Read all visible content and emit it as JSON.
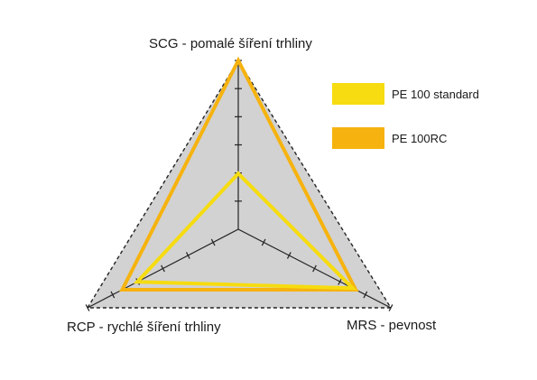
{
  "chart_data": {
    "type": "radar",
    "axes": [
      "SCG - pomalé šíření trhliny",
      "MRS - pevnost",
      "RCP - rychlé šíření trhliny"
    ],
    "series": [
      {
        "name": "PE 100 standard",
        "color": "#f6dc10",
        "values": [
          0.33,
          0.75,
          0.67
        ]
      },
      {
        "name": "PE 100RC",
        "color": "#f6b30f",
        "values": [
          1.0,
          0.77,
          0.77
        ]
      }
    ],
    "range": [
      0,
      1
    ],
    "ticks_per_axis": 6,
    "background_color": "#d2d2d2",
    "outline_style": "dashed",
    "legend_position": "top-right"
  }
}
